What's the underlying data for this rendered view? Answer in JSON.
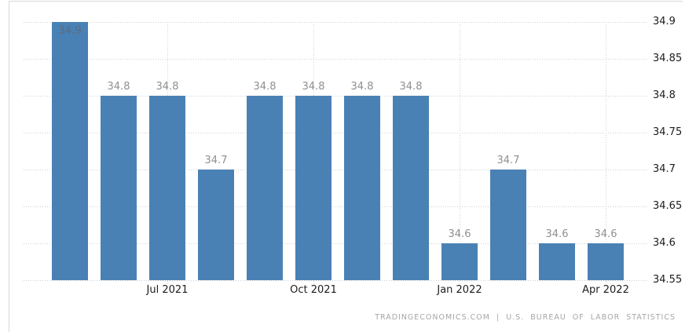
{
  "footer": {
    "attribution": "TRADINGECONOMICS.COM | U.S. BUREAU OF LABOR STATISTICS"
  },
  "chart_data": {
    "type": "bar",
    "title": "",
    "xlabel": "",
    "ylabel": "",
    "values": [
      34.9,
      34.8,
      34.8,
      34.7,
      34.8,
      34.8,
      34.8,
      34.8,
      34.6,
      34.7,
      34.6,
      34.6
    ],
    "bar_value_labels": [
      "34.9",
      "34.8",
      "34.8",
      "34.7",
      "34.8",
      "34.8",
      "34.8",
      "34.8",
      "34.6",
      "34.7",
      "34.6",
      "34.6"
    ],
    "x_ticks": [
      {
        "label": "Jul 2021",
        "bar_index": 2
      },
      {
        "label": "Oct 2021",
        "bar_index": 5
      },
      {
        "label": "Jan 2022",
        "bar_index": 8
      },
      {
        "label": "Apr 2022",
        "bar_index": 11
      }
    ],
    "y_ticks": [
      34.9,
      34.85,
      34.8,
      34.75,
      34.7,
      34.65,
      34.6,
      34.55
    ],
    "y_tick_labels": [
      "34.9",
      "34.85",
      "34.8",
      "34.75",
      "34.7",
      "34.65",
      "34.6",
      "34.55"
    ],
    "ylim": [
      34.55,
      34.9
    ],
    "grid": "dotted horizontal at every y tick; dotted vertical at labeled bars",
    "legend": "none",
    "y_axis_side": "right",
    "colors": {
      "bar": "#4a81b4",
      "value_label": "#8f8f8f",
      "value_label_inside": "#5c6b7a",
      "axis_label": "#1c1c1c",
      "gridline": "#cfcfcf",
      "frame_border": "#d8d8d8",
      "attribution": "#a6a6a6",
      "background": "#ffffff"
    }
  }
}
